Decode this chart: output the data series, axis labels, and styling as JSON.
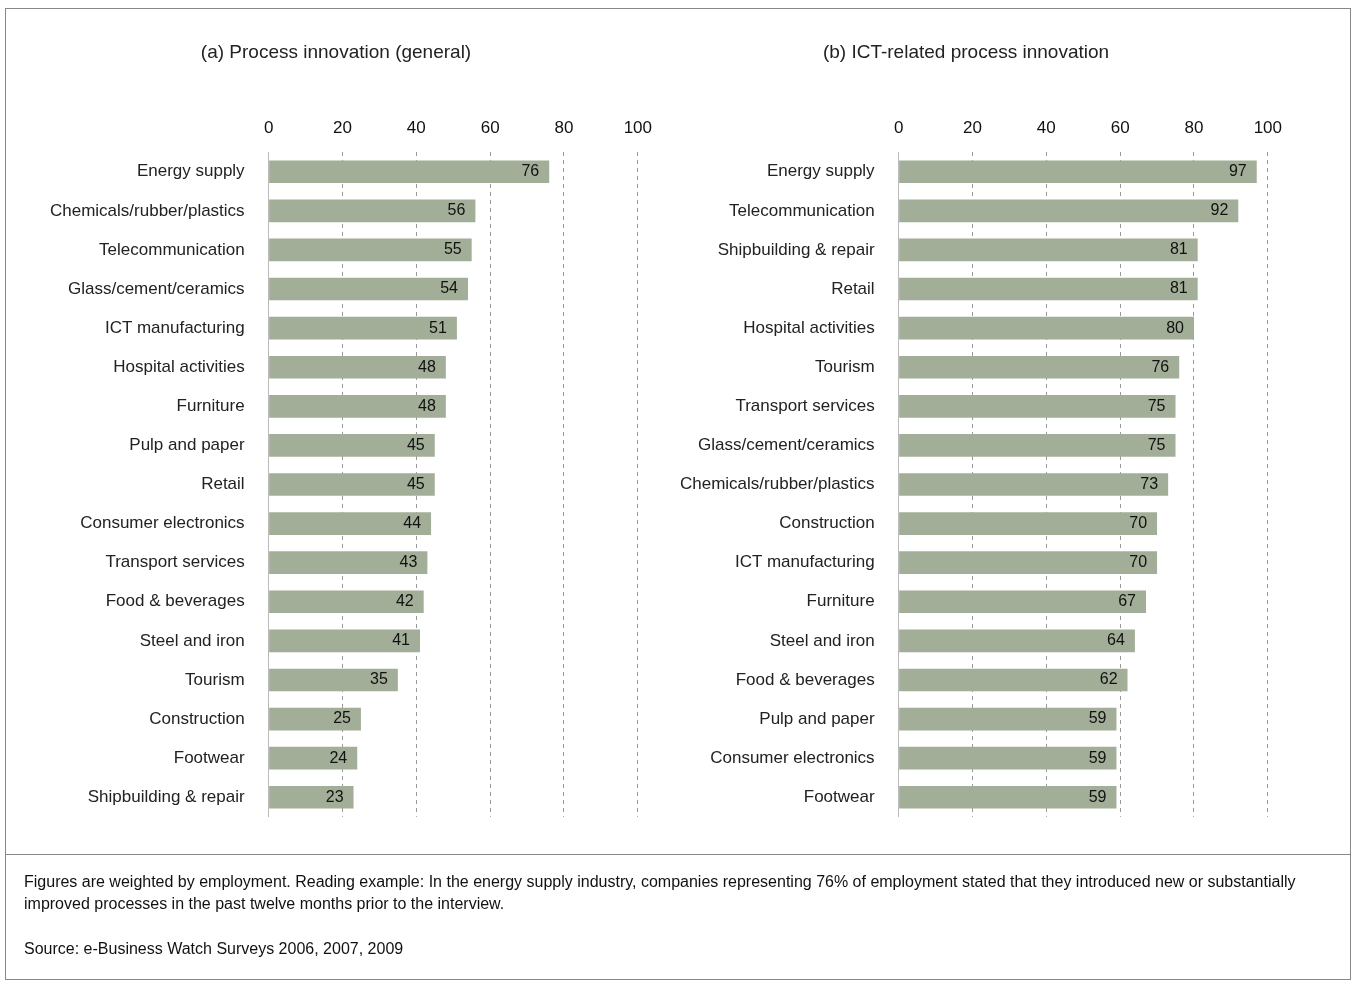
{
  "chart_data": [
    {
      "type": "bar",
      "orientation": "horizontal",
      "title": "(a) Process innovation (general)",
      "categories": [
        "Energy supply",
        "Chemicals/rubber/plastics",
        "Telecommunication",
        "Glass/cement/ceramics",
        "ICT manufacturing",
        "Hospital activities",
        "Furniture",
        "Pulp and paper",
        "Retail",
        "Consumer electronics",
        "Transport services",
        "Food & beverages",
        "Steel and iron",
        "Tourism",
        "Construction",
        "Footwear",
        "Shipbuilding & repair"
      ],
      "values": [
        76,
        56,
        55,
        54,
        51,
        48,
        48,
        45,
        45,
        44,
        43,
        42,
        41,
        35,
        25,
        24,
        23
      ],
      "color": "#a3ae98",
      "xlim": [
        0,
        100
      ],
      "xticks": [
        0,
        20,
        40,
        60,
        80,
        100
      ],
      "grid": "x",
      "data_labels": true,
      "legend": false
    },
    {
      "type": "bar",
      "orientation": "horizontal",
      "title": "(b) ICT-related process innovation",
      "categories": [
        "Energy supply",
        "Telecommunication",
        "Shipbuilding & repair",
        "Retail",
        "Hospital activities",
        "Tourism",
        "Transport services",
        "Glass/cement/ceramics",
        "Chemicals/rubber/plastics",
        "Construction",
        "ICT manufacturing",
        "Furniture",
        "Steel and iron",
        "Food & beverages",
        "Pulp and paper",
        "Consumer electronics",
        "Footwear"
      ],
      "values": [
        97,
        92,
        81,
        81,
        80,
        76,
        75,
        75,
        73,
        70,
        70,
        67,
        64,
        62,
        59,
        59,
        59
      ],
      "color": "#a3ae98",
      "xlim": [
        0,
        100
      ],
      "xticks": [
        0,
        20,
        40,
        60,
        80,
        100
      ],
      "grid": "x",
      "data_labels": true,
      "legend": false,
      "annotations": [
        "Figures are weighted by employment. Reading example: In the energy supply industry, companies representing 76% of employment stated that they introduced new or substantially improved processes in the past twelve months prior to the interview.",
        "Source: e-Business Watch Surveys 2006, 2007, 2009"
      ]
    }
  ]
}
